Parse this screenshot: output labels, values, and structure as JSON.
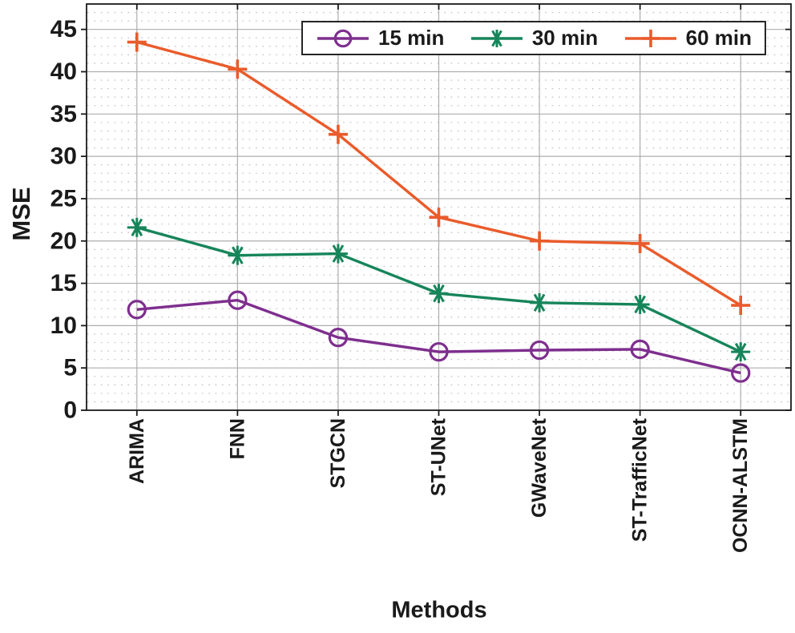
{
  "chart_data": {
    "type": "line",
    "title": "",
    "xlabel": "Methods",
    "ylabel": "MSE",
    "categories": [
      "ARIMA",
      "FNN",
      "STGCN",
      "ST-UNet",
      "GWaveNet",
      "ST-TrafficNet",
      "OCNN-ALSTM"
    ],
    "series": [
      {
        "name": "15 min",
        "color": "#7E2F8E",
        "marker": "circle",
        "values": [
          11.9,
          13.0,
          8.6,
          6.9,
          7.1,
          7.2,
          4.4
        ]
      },
      {
        "name": "30 min",
        "color": "#17855A",
        "marker": "asterisk",
        "values": [
          21.6,
          18.3,
          18.5,
          13.8,
          12.7,
          12.5,
          6.9
        ]
      },
      {
        "name": "60 min",
        "color": "#EA5B2B",
        "marker": "plus",
        "values": [
          43.5,
          40.3,
          32.6,
          22.8,
          20.0,
          19.7,
          12.4
        ]
      }
    ],
    "ylim": [
      0,
      48
    ],
    "yticks": [
      0,
      5,
      10,
      15,
      20,
      25,
      30,
      35,
      40,
      45
    ],
    "grid": {
      "major": true,
      "minor": true,
      "major_color": "#aeaeae",
      "minor_color": "#c3c3c3"
    },
    "axis_color": "#1a1a1a",
    "text_color": "#1a1a1a",
    "legend": {
      "position": "top-inside",
      "orientation": "horizontal",
      "entries": [
        "15 min",
        "30 min",
        "60 min"
      ]
    }
  }
}
